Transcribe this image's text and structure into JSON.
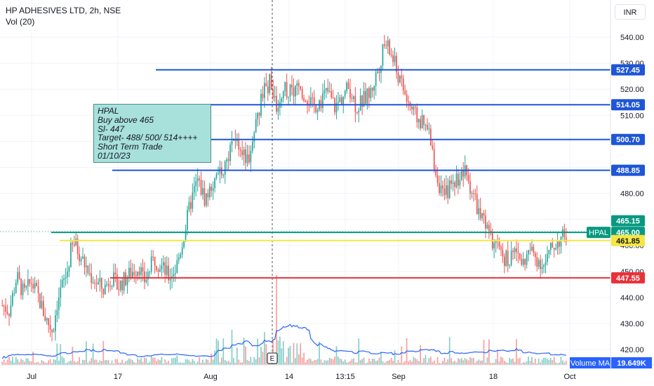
{
  "header": {
    "title": "HP ADHESIVES LTD, 2h, NSE",
    "volume_indicator": "Vol (20)",
    "currency": "INR"
  },
  "note": {
    "lines": [
      "HPAL",
      "Buy above 465",
      "Sl- 447",
      "Target- 488/ 500/ 514++++",
      "Short Term Trade",
      "01/10/23"
    ]
  },
  "colors": {
    "up": "#26a69a",
    "down": "#ef5350",
    "level_blue": "#1e56d6",
    "level_green": "#089981",
    "level_yellow": "#f5e642",
    "level_red": "#e8313a",
    "volume_ma": "#2962ff"
  },
  "chart_data": {
    "type": "candlestick",
    "y_axis": {
      "min": 418,
      "max": 546,
      "ticks": [
        420,
        430,
        440,
        450,
        460,
        470,
        480,
        490,
        500,
        510,
        520,
        530,
        540
      ]
    },
    "x_axis": {
      "ticks": [
        "Jul",
        "17",
        "Aug",
        "14",
        "13:15",
        "Sep",
        "18",
        "Oct"
      ]
    },
    "levels": [
      {
        "label": "527.45",
        "value": 527.45,
        "color": "blue"
      },
      {
        "label": "514.05",
        "value": 514.05,
        "color": "blue"
      },
      {
        "label": "500.70",
        "value": 500.7,
        "color": "blue"
      },
      {
        "label": "488.85",
        "value": 488.85,
        "color": "blue"
      },
      {
        "label": "465.00",
        "value": 465.0,
        "color": "green"
      },
      {
        "label": "461.85",
        "value": 461.85,
        "color": "yellow"
      },
      {
        "label": "447.55",
        "value": 447.55,
        "color": "red"
      }
    ],
    "price_labels": [
      {
        "label": "465.15",
        "value": 465.15,
        "color": "green"
      }
    ],
    "symbol_tag": "HPAL",
    "volume_ma_label": "Volume MA",
    "volume_ma_value": "19.649K",
    "event_marker": "E",
    "price_path": [
      [
        0.0,
        437
      ],
      [
        1.0,
        435
      ],
      [
        2.0,
        448
      ],
      [
        3.0,
        441
      ],
      [
        4.0,
        446
      ],
      [
        5.0,
        440
      ],
      [
        6.0,
        432
      ],
      [
        7.0,
        427
      ],
      [
        7.5,
        437
      ],
      [
        8.0,
        442
      ],
      [
        9.0,
        450
      ],
      [
        9.5,
        458
      ],
      [
        10.0,
        461
      ],
      [
        11.0,
        455
      ],
      [
        12.0,
        449
      ],
      [
        13.0,
        446
      ],
      [
        14.0,
        443
      ],
      [
        15.0,
        448
      ],
      [
        16.0,
        444
      ],
      [
        17.0,
        447
      ],
      [
        18.0,
        450
      ],
      [
        19.0,
        452
      ],
      [
        19.5,
        446
      ],
      [
        20.0,
        448
      ],
      [
        21.0,
        455
      ],
      [
        22.0,
        452
      ],
      [
        23.0,
        448
      ],
      [
        24.0,
        451
      ],
      [
        25.0,
        462
      ],
      [
        26.0,
        476
      ],
      [
        27.0,
        485
      ],
      [
        28.0,
        478
      ],
      [
        29.0,
        482
      ],
      [
        30.0,
        486
      ],
      [
        31.0,
        492
      ],
      [
        32.0,
        503
      ],
      [
        33.0,
        497
      ],
      [
        34.0,
        493
      ],
      [
        35.0,
        505
      ],
      [
        36.0,
        519
      ],
      [
        37.0,
        523
      ],
      [
        38.0,
        514
      ],
      [
        39.0,
        521
      ],
      [
        40.0,
        518
      ],
      [
        41.0,
        521
      ],
      [
        42.0,
        518
      ],
      [
        43.0,
        513
      ],
      [
        44.0,
        516
      ],
      [
        45.0,
        519
      ],
      [
        46.0,
        513
      ],
      [
        47.0,
        517
      ],
      [
        48.0,
        521
      ],
      [
        49.0,
        513
      ],
      [
        50.0,
        516
      ],
      [
        51.0,
        519
      ],
      [
        52.0,
        528
      ],
      [
        53.0,
        538
      ],
      [
        54.0,
        532
      ],
      [
        55.0,
        523
      ],
      [
        56.0,
        516
      ],
      [
        57.0,
        510
      ],
      [
        58.0,
        507
      ],
      [
        59.0,
        503
      ],
      [
        59.5,
        495
      ],
      [
        60.0,
        488
      ],
      [
        61.0,
        478
      ],
      [
        62.0,
        483
      ],
      [
        63.0,
        486
      ],
      [
        64.0,
        488
      ],
      [
        65.0,
        481
      ],
      [
        66.0,
        472
      ],
      [
        67.0,
        466
      ],
      [
        68.0,
        460
      ],
      [
        69.0,
        457
      ],
      [
        70.0,
        454
      ],
      [
        71.0,
        458
      ],
      [
        72.0,
        453
      ],
      [
        73.0,
        458
      ],
      [
        74.0,
        455
      ],
      [
        75.0,
        452
      ],
      [
        76.0,
        459
      ],
      [
        77.0,
        462
      ],
      [
        78.0,
        464
      ]
    ]
  }
}
